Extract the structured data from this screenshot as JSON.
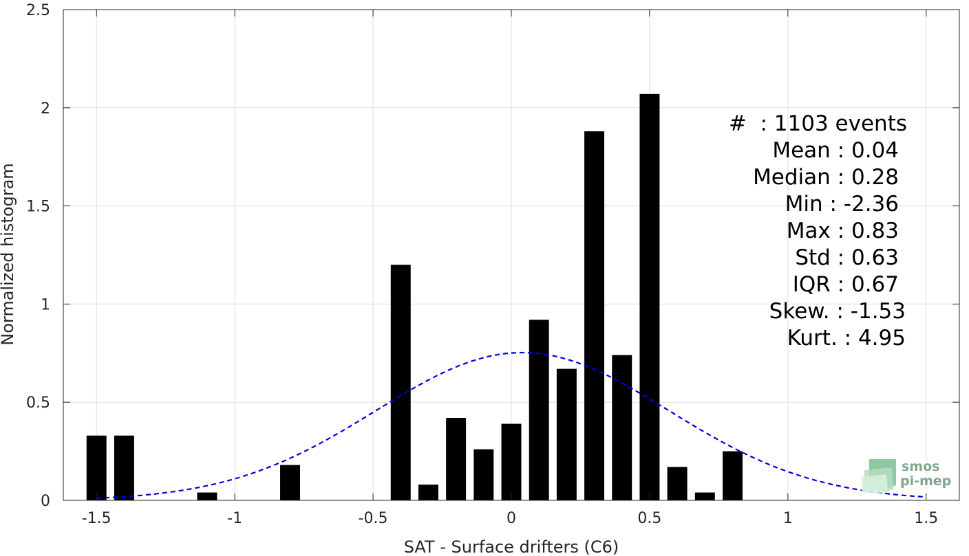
{
  "chart_data": {
    "type": "bar",
    "xlabel": "SAT - Surface drifters (C6)",
    "ylabel": "Normalized histogram",
    "xlim": [
      -1.62,
      1.62
    ],
    "ylim": [
      0,
      2.5
    ],
    "xticks": [
      -1.5,
      -1,
      -0.5,
      0,
      0.5,
      1,
      1.5
    ],
    "xtick_labels": [
      "-1.5",
      "-1",
      "-0.5",
      "0",
      "0.5",
      "1",
      "1.5"
    ],
    "yticks": [
      0,
      0.5,
      1,
      1.5,
      2,
      2.5
    ],
    "ytick_labels": [
      "0",
      "0.5",
      "1",
      "1.5",
      "2",
      "2.5"
    ],
    "grid": true,
    "bar_color": "#000000",
    "bars": {
      "x": [
        -1.5,
        -1.4,
        -1.1,
        -0.8,
        -0.4,
        -0.3,
        -0.2,
        -0.1,
        0.0,
        0.1,
        0.2,
        0.3,
        0.4,
        0.5,
        0.6,
        0.7,
        0.8
      ],
      "values": [
        0.33,
        0.33,
        0.04,
        0.18,
        1.2,
        0.08,
        0.42,
        0.26,
        0.39,
        0.92,
        0.67,
        1.88,
        0.74,
        2.07,
        0.17,
        0.04,
        0.25
      ]
    },
    "fit_curve": {
      "style": "dashed",
      "color": "#0000dd",
      "mean": 0.04,
      "std": 0.53,
      "x_range": [
        -1.5,
        1.5
      ]
    },
    "stats": [
      {
        "label": "#  : 1103 events"
      },
      {
        "label": "Mean : 0.04"
      },
      {
        "label": "Median : 0.28"
      },
      {
        "label": "Min : -2.36"
      },
      {
        "label": "Max : 0.83"
      },
      {
        "label": "Std : 0.63"
      },
      {
        "label": "IQR : 0.67"
      },
      {
        "label": "Skew. : -1.53"
      },
      {
        "label": "Kurt. : 4.95"
      }
    ]
  },
  "logo": {
    "line1": "smos",
    "line2": "pi-mep"
  }
}
